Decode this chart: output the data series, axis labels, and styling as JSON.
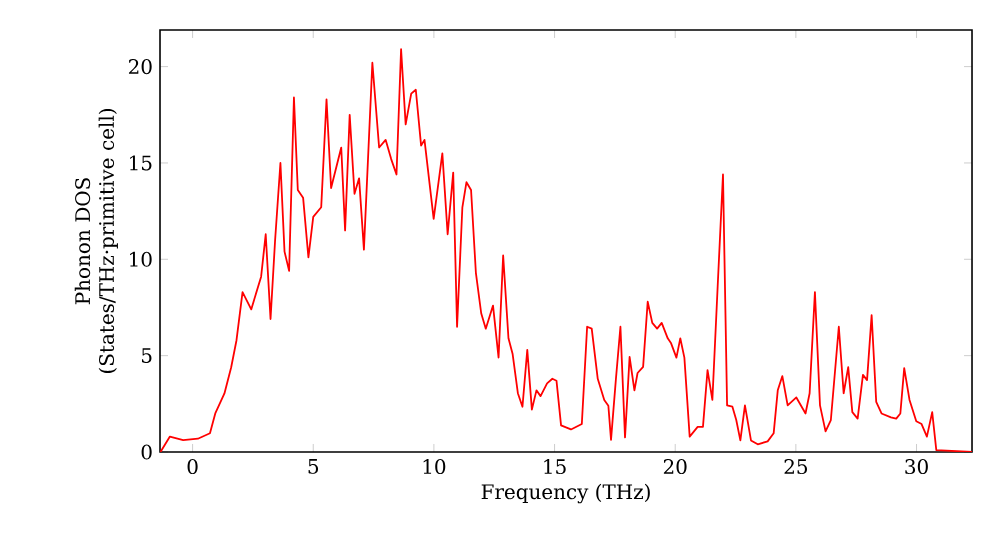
{
  "chart_data": {
    "type": "line",
    "xlabel": "Frequency (THz)",
    "ylabel": "Phonon DOS\n(States/THz·primitive cell)",
    "xlim": [
      -1.35,
      32.3
    ],
    "ylim": [
      0,
      21.9
    ],
    "xticks": [
      0,
      5,
      10,
      15,
      20,
      25,
      30
    ],
    "yticks": [
      0,
      5,
      10,
      15,
      20
    ],
    "marker": "none",
    "line_style": "solid",
    "series": [
      {
        "color": "#ff0000",
        "x": [
          -1.33,
          -0.94,
          -0.39,
          0.22,
          0.72,
          0.94,
          1.32,
          1.6,
          1.82,
          2.07,
          2.43,
          2.84,
          3.03,
          3.23,
          3.42,
          3.64,
          3.81,
          4.0,
          4.2,
          4.36,
          4.58,
          4.8,
          5.0,
          5.33,
          5.55,
          5.74,
          6.16,
          6.32,
          6.51,
          6.71,
          6.9,
          7.1,
          7.45,
          7.73,
          8.0,
          8.23,
          8.45,
          8.64,
          8.83,
          9.06,
          9.25,
          9.47,
          9.61,
          9.99,
          10.35,
          10.57,
          10.8,
          10.96,
          11.18,
          11.35,
          11.54,
          11.74,
          11.96,
          12.15,
          12.45,
          12.68,
          12.87,
          13.09,
          13.26,
          13.48,
          13.67,
          13.87,
          14.06,
          14.25,
          14.42,
          14.69,
          14.91,
          15.08,
          15.27,
          15.68,
          16.13,
          16.35,
          16.54,
          16.79,
          17.06,
          17.23,
          17.34,
          17.54,
          17.73,
          17.92,
          18.11,
          18.31,
          18.44,
          18.67,
          18.86,
          19.05,
          19.25,
          19.44,
          19.69,
          19.83,
          20.05,
          20.21,
          20.38,
          20.6,
          20.93,
          21.15,
          21.34,
          21.54,
          21.76,
          21.98,
          22.15,
          22.37,
          22.53,
          22.7,
          22.89,
          23.14,
          23.42,
          23.83,
          24.08,
          24.25,
          24.44,
          24.66,
          25.02,
          25.4,
          25.57,
          25.79,
          26.0,
          26.23,
          26.45,
          26.78,
          26.98,
          27.17,
          27.34,
          27.56,
          27.78,
          27.95,
          28.14,
          28.33,
          28.55,
          28.94,
          29.16,
          29.33,
          29.49,
          29.71,
          29.99,
          30.21,
          30.43,
          30.65,
          30.82,
          32.3
        ],
        "values": [
          0,
          0.8,
          0.62,
          0.69,
          0.97,
          2.0,
          3.04,
          4.4,
          5.8,
          8.3,
          7.4,
          9.1,
          11.3,
          6.9,
          11.0,
          15.0,
          10.4,
          9.4,
          18.4,
          13.6,
          13.2,
          10.1,
          12.2,
          12.7,
          18.3,
          13.7,
          15.8,
          11.5,
          17.5,
          13.4,
          14.2,
          10.5,
          20.2,
          15.8,
          16.2,
          15.2,
          14.4,
          20.9,
          17.0,
          18.6,
          18.8,
          15.9,
          16.2,
          12.1,
          15.5,
          11.3,
          14.5,
          6.5,
          12.7,
          14.0,
          13.6,
          9.3,
          7.2,
          6.4,
          7.6,
          4.9,
          10.2,
          5.9,
          5.1,
          3.05,
          2.35,
          5.3,
          2.2,
          3.2,
          2.9,
          3.56,
          3.8,
          3.7,
          1.38,
          1.17,
          1.45,
          6.5,
          6.4,
          3.8,
          2.7,
          2.4,
          0.63,
          3.74,
          6.5,
          0.76,
          4.93,
          3.2,
          4.1,
          4.42,
          7.8,
          6.7,
          6.4,
          6.7,
          5.9,
          5.64,
          4.9,
          5.9,
          4.9,
          0.8,
          1.3,
          1.3,
          4.25,
          2.7,
          8.6,
          14.4,
          2.42,
          2.35,
          1.66,
          0.6,
          2.42,
          0.6,
          0.4,
          0.55,
          0.97,
          3.2,
          3.94,
          2.42,
          2.83,
          2.0,
          3.05,
          8.3,
          2.42,
          1.07,
          1.66,
          6.5,
          3.05,
          4.4,
          2.07,
          1.73,
          4.0,
          3.73,
          7.1,
          2.6,
          2.0,
          1.8,
          1.73,
          2.0,
          4.35,
          2.7,
          1.6,
          1.45,
          0.8,
          2.07,
          0.1,
          0
        ]
      }
    ]
  }
}
